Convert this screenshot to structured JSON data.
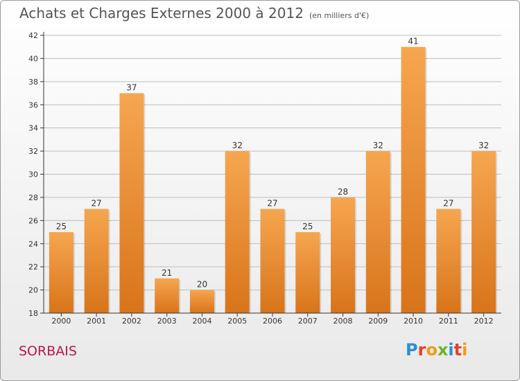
{
  "title": "Achats et Charges Externes 2000 à 2012",
  "subtitle": "(en milliers d'€)",
  "footer_name": "SORBAIS",
  "logo": {
    "letters": [
      "P",
      "r",
      "o",
      "x",
      "i",
      "t",
      "i"
    ],
    "colors": [
      "#2d8fd6",
      "#e2402a",
      "#f29a1b",
      "#6fb32a",
      "#2d8fd6",
      "#e2402a",
      "#f29a1b"
    ]
  },
  "colors": {
    "bar_light": "#f6a650",
    "bar_dark": "#d8741a",
    "axis": "#333333",
    "grid": "#bdbdbd"
  },
  "chart_data": {
    "type": "bar",
    "categories": [
      "2000",
      "2001",
      "2002",
      "2003",
      "2004",
      "2005",
      "2006",
      "2007",
      "2008",
      "2009",
      "2010",
      "2011",
      "2012"
    ],
    "values": [
      25,
      27,
      37,
      21,
      20,
      32,
      27,
      25,
      28,
      32,
      41,
      27,
      32
    ],
    "title": "Achats et Charges Externes 2000 à 2012",
    "subtitle": "(en milliers d'€)",
    "ylim": [
      18,
      42
    ],
    "yticks": [
      18,
      20,
      22,
      24,
      26,
      28,
      30,
      32,
      34,
      36,
      38,
      40,
      42
    ],
    "grid": true,
    "data_labels": true
  }
}
